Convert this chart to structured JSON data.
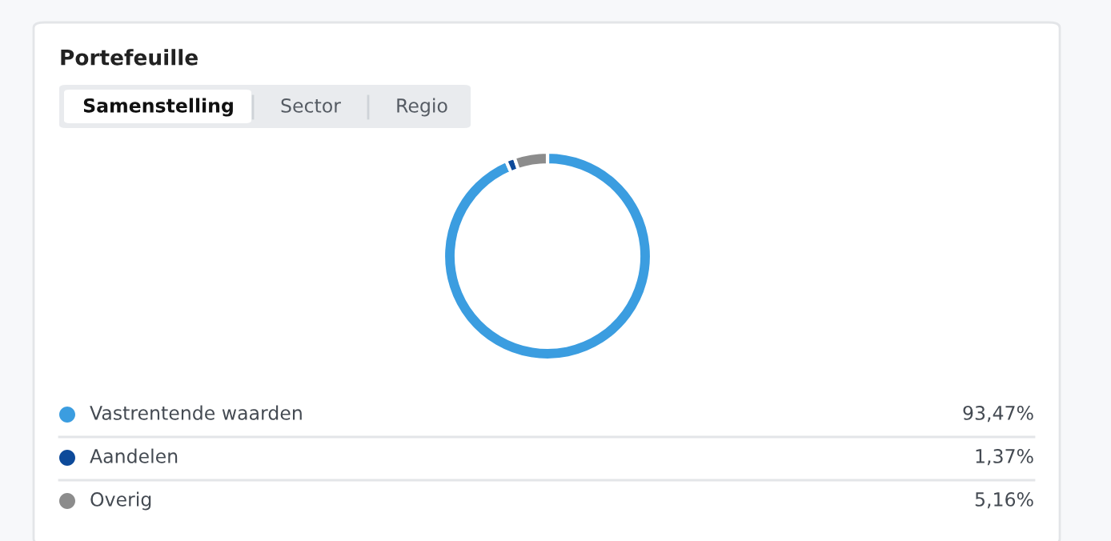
{
  "chart_data": {
    "type": "donut",
    "title": "Portefeuille",
    "annotations": [
      "Samenstelling",
      "Sector",
      "Regio"
    ],
    "categories": [
      "Vastrentende waarden",
      "Aandelen",
      "Overig"
    ],
    "values": [
      93.47,
      1.37,
      5.16
    ],
    "colors": [
      "#3b9de0",
      "#0d4a9a",
      "#8c8c8c"
    ],
    "value_labels": [
      "93,47%",
      "1,37%",
      "5,16%"
    ],
    "legend": "bottom"
  }
}
